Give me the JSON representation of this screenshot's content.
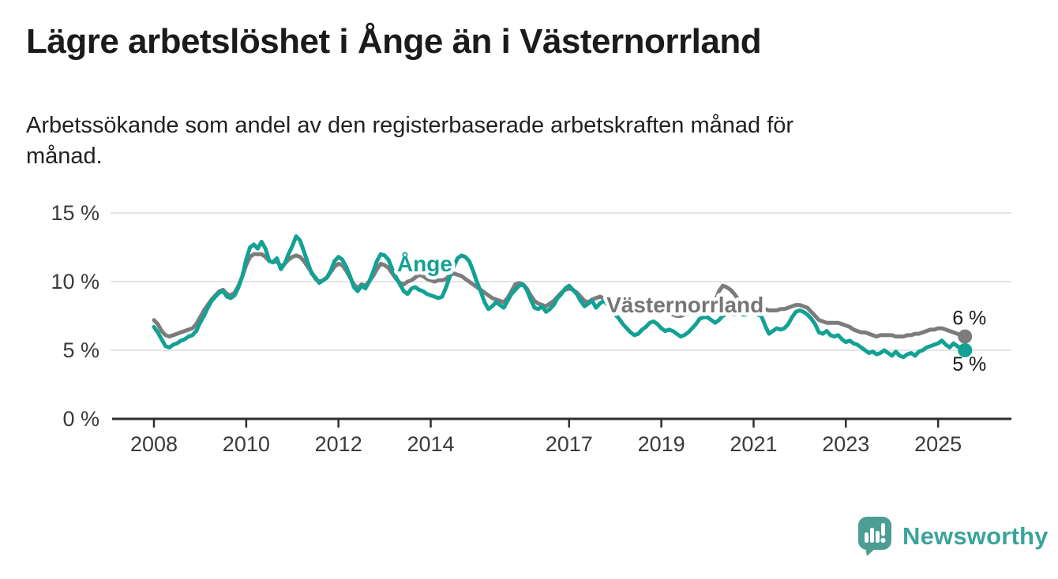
{
  "title": "Lägre arbetslöshet i Ånge än i Västernorrland",
  "subtitle": "Arbetssökande som andel av den registerbaserade arbetskraften månad för månad.",
  "subtitle_lines": [
    "Arbetssökande som andel av den registerbaserade arbetskraften månad för",
    "månad."
  ],
  "branding": {
    "name": "Newsworthy"
  },
  "colors": {
    "ange": "#14a195",
    "vasternorrland": "#7c7c7c",
    "vasternorrland_label": "#757575",
    "grid": "#dcdcdc",
    "axis": "#2e2e2e",
    "tick_label": "#3a3a3a",
    "end_label": "#1a1a1a",
    "logo_bubble": "#4c9d93",
    "logo_text": "#3ba49a"
  },
  "chart_data": {
    "type": "line",
    "unit": "%",
    "xlim": [
      2008,
      2025.75
    ],
    "ylim": [
      0,
      15
    ],
    "grid": "horizontal",
    "legend_position": "inline-labels",
    "x_ticks": [
      {
        "label": "2008",
        "year": 2008
      },
      {
        "label": "2010",
        "year": 2010
      },
      {
        "label": "2012",
        "year": 2012
      },
      {
        "label": "2014",
        "year": 2014
      },
      {
        "label": "2017",
        "year": 2017
      },
      {
        "label": "2019",
        "year": 2019
      },
      {
        "label": "2021",
        "year": 2021
      },
      {
        "label": "2023",
        "year": 2023
      },
      {
        "label": "2025",
        "year": 2025
      }
    ],
    "y_ticks": [
      {
        "label": "0 %",
        "value": 0
      },
      {
        "label": "5 %",
        "value": 5
      },
      {
        "label": "10 %",
        "value": 10
      },
      {
        "label": "15 %",
        "value": 15
      }
    ],
    "series": [
      {
        "id": "vasternorrland",
        "name": "Västernorrland",
        "color": "#7c7c7c",
        "label_color": "#757575",
        "label_anchor": [
          2017.81,
          7.76
        ],
        "end_label": "6 %",
        "end_label_position": "above",
        "start_year": 2008,
        "interval": "monthly",
        "values": [
          7.2,
          6.9,
          6.4,
          6.1,
          6.0,
          6.1,
          6.2,
          6.3,
          6.4,
          6.5,
          6.6,
          6.9,
          7.4,
          7.9,
          8.3,
          8.7,
          9.0,
          9.3,
          9.4,
          9.1,
          9.0,
          9.2,
          9.7,
          10.4,
          11.2,
          11.8,
          12.0,
          12.0,
          12.0,
          11.8,
          11.5,
          11.4,
          11.5,
          11.1,
          11.3,
          11.6,
          11.8,
          11.9,
          11.8,
          11.5,
          11.1,
          10.7,
          10.2,
          10.0,
          10.1,
          10.3,
          10.7,
          11.1,
          11.3,
          11.2,
          10.8,
          10.3,
          9.8,
          9.5,
          9.8,
          9.7,
          10.0,
          10.4,
          10.9,
          11.3,
          11.2,
          11.0,
          10.6,
          10.2,
          9.9,
          9.8,
          10.0,
          10.1,
          10.3,
          10.5,
          10.4,
          10.2,
          10.1,
          10.0,
          10.1,
          10.1,
          10.2,
          10.5,
          10.6,
          10.5,
          10.4,
          10.2,
          10.0,
          9.8,
          9.6,
          9.4,
          9.2,
          9.0,
          8.8,
          8.7,
          8.6,
          8.5,
          8.8,
          9.3,
          9.8,
          9.9,
          9.8,
          9.5,
          9.0,
          8.6,
          8.4,
          8.3,
          8.2,
          8.4,
          8.6,
          8.9,
          9.2,
          9.4,
          9.5,
          9.4,
          9.2,
          8.9,
          8.6,
          8.5,
          8.7,
          8.8,
          8.9,
          8.8,
          8.6,
          8.4,
          8.2,
          8.0,
          7.9,
          7.8,
          7.7,
          7.7,
          7.8,
          7.8,
          7.9,
          8.0,
          8.0,
          8.0,
          7.9,
          7.8,
          7.7,
          7.6,
          7.5,
          7.5,
          7.6,
          7.7,
          7.8,
          7.9,
          8.0,
          8.1,
          8.1,
          8.2,
          8.6,
          9.3,
          9.7,
          9.6,
          9.4,
          9.1,
          8.7,
          8.3,
          8.1,
          8.0,
          8.0,
          8.0,
          8.1,
          8.0,
          7.9,
          7.9,
          7.9,
          8.0,
          8.0,
          8.1,
          8.2,
          8.3,
          8.3,
          8.2,
          8.1,
          7.8,
          7.5,
          7.2,
          7.1,
          7.0,
          7.0,
          7.0,
          7.0,
          6.9,
          6.8,
          6.7,
          6.5,
          6.4,
          6.3,
          6.3,
          6.2,
          6.1,
          6.0,
          6.1,
          6.1,
          6.1,
          6.1,
          6.0,
          6.0,
          6.0,
          6.1,
          6.1,
          6.2,
          6.2,
          6.3,
          6.4,
          6.5,
          6.5,
          6.6,
          6.6,
          6.5,
          6.4,
          6.3,
          6.2,
          6.1,
          6.0
        ]
      },
      {
        "id": "ange",
        "name": "Ånge",
        "color": "#14a195",
        "label_color": "#14a195",
        "label_anchor": [
          2013.27,
          10.75
        ],
        "end_label": "5 %",
        "end_label_position": "below",
        "start_year": 2008,
        "interval": "monthly",
        "values": [
          6.7,
          6.3,
          5.8,
          5.3,
          5.2,
          5.4,
          5.5,
          5.7,
          5.8,
          6.0,
          6.1,
          6.4,
          7.0,
          7.5,
          8.1,
          8.6,
          8.9,
          9.2,
          9.3,
          8.9,
          8.8,
          9.0,
          9.6,
          10.4,
          11.6,
          12.5,
          12.7,
          12.4,
          12.9,
          12.4,
          11.5,
          11.4,
          11.7,
          10.9,
          11.3,
          12.0,
          12.6,
          13.3,
          13.0,
          12.2,
          11.4,
          10.6,
          10.3,
          9.9,
          10.1,
          10.3,
          10.8,
          11.5,
          11.8,
          11.6,
          11.1,
          10.4,
          9.6,
          9.3,
          9.7,
          9.5,
          10.0,
          10.7,
          11.5,
          12.0,
          11.9,
          11.6,
          10.9,
          10.3,
          9.8,
          9.3,
          9.1,
          9.5,
          9.6,
          9.4,
          9.3,
          9.1,
          9.0,
          8.9,
          8.8,
          8.9,
          9.6,
          10.4,
          11.1,
          11.7,
          11.9,
          11.8,
          11.5,
          10.8,
          10.0,
          9.3,
          8.5,
          8.0,
          8.2,
          8.5,
          8.3,
          8.1,
          8.6,
          9.1,
          9.4,
          9.7,
          9.8,
          9.4,
          8.7,
          8.1,
          8.0,
          8.2,
          7.8,
          8.0,
          8.3,
          8.8,
          9.1,
          9.5,
          9.7,
          9.4,
          9.1,
          8.6,
          8.2,
          8.4,
          8.6,
          8.1,
          8.4,
          8.6,
          8.3,
          7.9,
          7.6,
          7.3,
          6.9,
          6.6,
          6.3,
          6.1,
          6.2,
          6.5,
          6.7,
          7.0,
          7.1,
          6.9,
          6.6,
          6.4,
          6.5,
          6.4,
          6.2,
          6.0,
          6.1,
          6.3,
          6.6,
          6.9,
          7.3,
          7.4,
          7.4,
          7.2,
          7.0,
          7.2,
          7.5,
          7.7,
          7.7,
          7.6,
          7.7,
          7.6,
          7.6,
          7.7,
          7.7,
          7.6,
          7.5,
          6.8,
          6.2,
          6.4,
          6.6,
          6.5,
          6.6,
          6.9,
          7.4,
          7.8,
          7.9,
          7.8,
          7.6,
          7.3,
          6.9,
          6.3,
          6.2,
          6.4,
          6.1,
          6.0,
          6.1,
          5.8,
          5.6,
          5.7,
          5.5,
          5.4,
          5.2,
          5.0,
          4.8,
          4.9,
          4.7,
          4.8,
          5.0,
          4.8,
          4.6,
          4.9,
          4.6,
          4.5,
          4.7,
          4.8,
          4.6,
          4.9,
          5.0,
          5.2,
          5.3,
          5.4,
          5.5,
          5.7,
          5.4,
          5.2,
          5.5,
          5.3,
          5.1,
          5.0
        ]
      }
    ]
  }
}
